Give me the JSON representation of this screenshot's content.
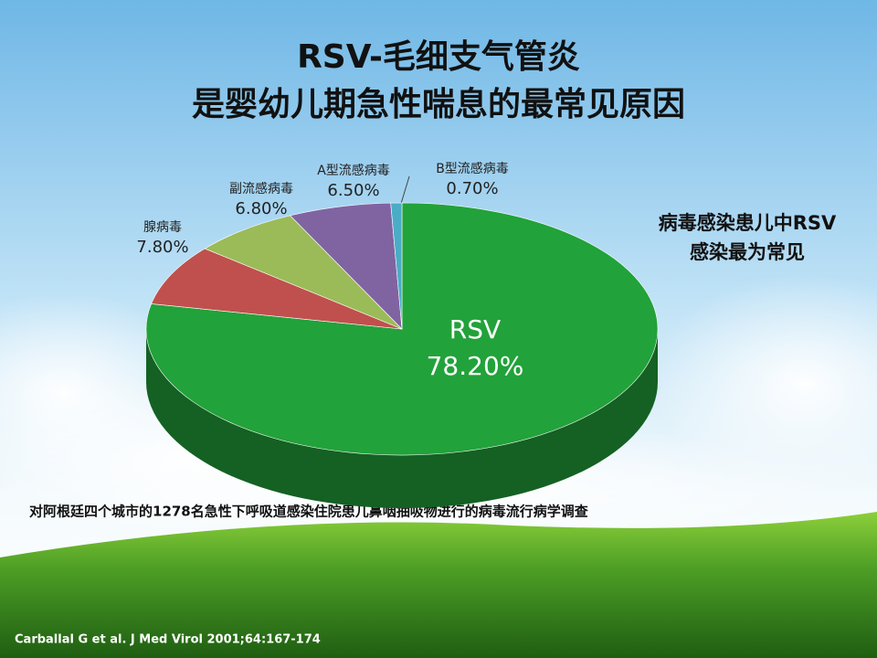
{
  "chart_data": {
    "type": "pie",
    "title": "RSV-毛细支气管炎",
    "subtitle": "是婴幼儿期急性喘息的最常见原因",
    "categories": [
      "RSV",
      "腺病毒",
      "副流感病毒",
      "A型流感病毒",
      "B型流感病毒"
    ],
    "values": [
      78.2,
      7.8,
      6.8,
      6.5,
      0.7
    ],
    "value_labels": [
      "78.20%",
      "7.80%",
      "6.80%",
      "6.50%",
      "0.70%"
    ],
    "colors": [
      "#22a23a",
      "#c0504d",
      "#9bbb59",
      "#8064a2",
      "#4bacc6"
    ],
    "annotations": [
      "病毒感染患儿中RSV",
      "感染最为常见"
    ],
    "footnote": "对阿根廷四个城市的1278名急性下呼吸道感染住院患儿鼻咽抽吸物进行的病毒流行病学调查",
    "source": "Carballal G et al. J Med Virol 2001;64:167-174"
  }
}
